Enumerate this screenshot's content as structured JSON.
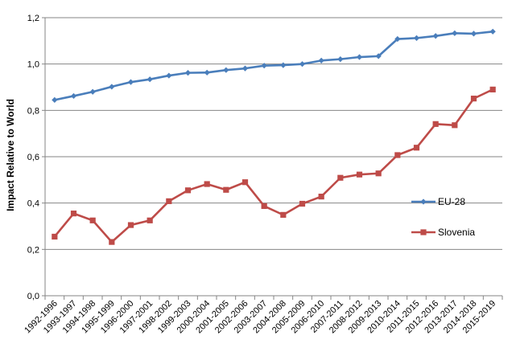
{
  "chart_data": {
    "type": "line",
    "title": "",
    "xlabel": "",
    "ylabel": "Impact Relative to World",
    "ylim": [
      0,
      1.2
    ],
    "yticks": [
      "0,0",
      "0,2",
      "0,4",
      "0,6",
      "0,8",
      "1,0",
      "1,2"
    ],
    "grid": "horizontal",
    "legend_position": "right",
    "categories": [
      "1992-1996",
      "1993-1997",
      "1994-1998",
      "1995-1999",
      "1996-2000",
      "1997-2001",
      "1998-2002",
      "1999-2003",
      "2000-2004",
      "2001-2005",
      "2002-2006",
      "2003-2007",
      "2004-2008",
      "2005-2009",
      "2006-2010",
      "2007-2011",
      "2008-2012",
      "2009-2013",
      "2010-2014",
      "2011-2015",
      "2012-2016",
      "2013-2017",
      "2014-2018",
      "2015-2019"
    ],
    "series": [
      {
        "name": "EU-28",
        "color": "#4a7ebb",
        "marker": "diamond",
        "values": [
          0.845,
          0.862,
          0.88,
          0.902,
          0.922,
          0.934,
          0.95,
          0.962,
          0.963,
          0.974,
          0.981,
          0.993,
          0.995,
          1.0,
          1.015,
          1.021,
          1.03,
          1.034,
          1.108,
          1.112,
          1.121,
          1.133,
          1.131,
          1.14
        ]
      },
      {
        "name": "Slovenia",
        "color": "#be4b48",
        "marker": "square",
        "values": [
          0.255,
          0.355,
          0.325,
          0.232,
          0.305,
          0.325,
          0.408,
          0.455,
          0.482,
          0.457,
          0.49,
          0.387,
          0.349,
          0.397,
          0.428,
          0.509,
          0.523,
          0.528,
          0.607,
          0.639,
          0.741,
          0.736,
          0.851,
          0.89
        ]
      }
    ]
  }
}
